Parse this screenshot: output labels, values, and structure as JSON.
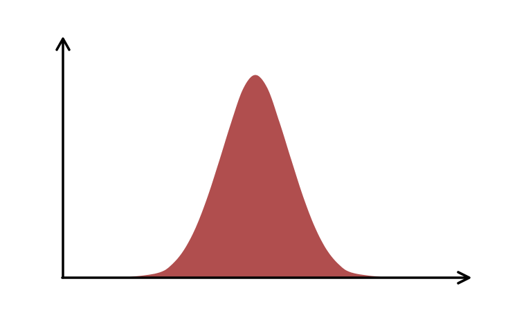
{
  "chart_data": {
    "type": "area",
    "title": "",
    "xlabel": "",
    "ylabel": "",
    "shape": "bell curve (normal distribution)",
    "x": [
      -4.0,
      -3.5,
      -3.0,
      -2.5,
      -2.0,
      -1.75,
      -1.5,
      -1.25,
      -1.0,
      -0.75,
      -0.5,
      -0.25,
      0.0,
      0.25,
      0.5,
      0.75,
      1.0,
      1.25,
      1.5,
      1.75,
      2.0,
      2.5,
      3.0,
      3.5,
      4.0
    ],
    "series": [
      {
        "values": [
          0.03,
          0.04,
          0.06,
          0.12,
          0.45,
          1.1,
          2.3,
          4.2,
          6.8,
          9.9,
          13.1,
          15.9,
          17.0,
          15.9,
          13.1,
          9.9,
          6.8,
          4.2,
          2.3,
          1.1,
          0.45,
          0.12,
          0.06,
          0.04,
          0.03
        ]
      }
    ],
    "xlim": [
      -4.0,
      4.0
    ],
    "ylim": [
      0,
      19
    ],
    "grid": false,
    "legend": "none",
    "ticks": false,
    "colors": {
      "fill": "#b04e4e",
      "axis": "#000000",
      "background": "#ffffff"
    }
  }
}
